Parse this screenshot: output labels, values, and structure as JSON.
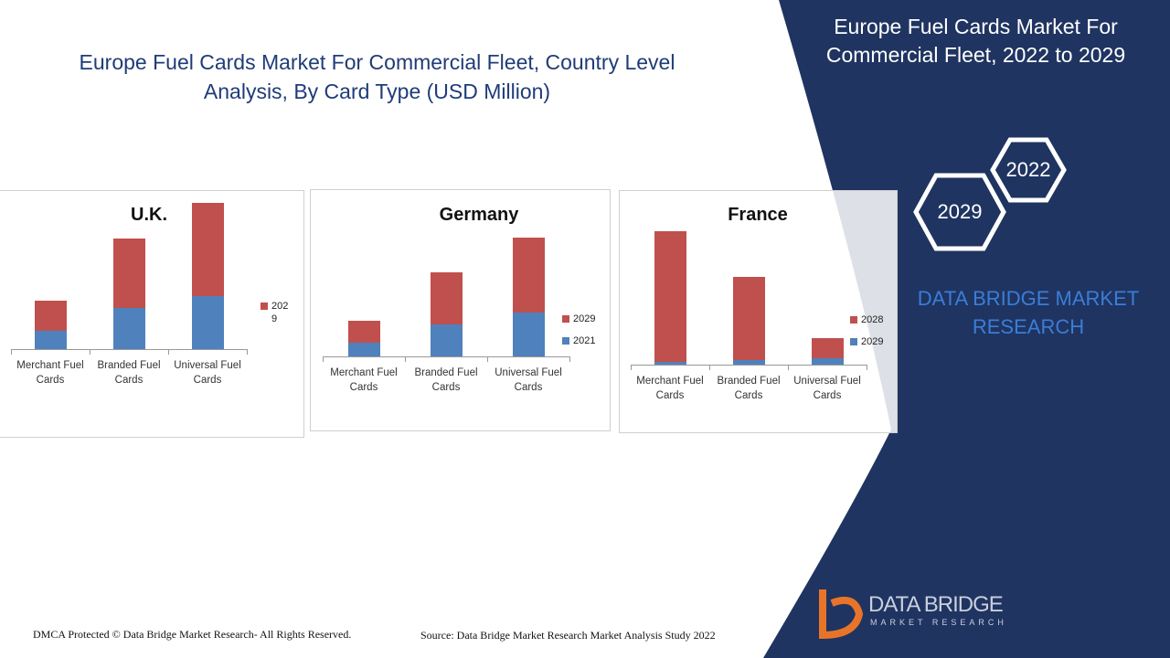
{
  "header": {
    "title": "Europe Fuel Cards Market For Commercial Fleet, Country Level Analysis, By Card Type (USD Million)"
  },
  "side": {
    "title": "Europe Fuel Cards Market For Commercial Fleet, 2022 to 2029",
    "hex_1": "2022",
    "hex_2": "2029",
    "brand": "DATA BRIDGE MARKET RESEARCH",
    "logo_top": "DATA BRIDGE",
    "logo_bottom": "MARKET RESEARCH"
  },
  "footer": {
    "left": "DMCA Protected © Data Bridge Market Research- All Rights Reserved.",
    "right": "Source: Data Bridge Market Research Market Analysis Study 2022"
  },
  "chart_data": [
    {
      "type": "bar",
      "stacked": true,
      "title": "U.K.",
      "categories": [
        "Merchant Fuel Cards",
        "Branded Fuel Cards",
        "Universal Fuel Cards"
      ],
      "series": [
        {
          "color": "#4f81bd",
          "values": [
            20,
            45,
            58
          ]
        },
        {
          "name": "2029",
          "color": "#c0504d",
          "values": [
            33,
            76,
            102
          ]
        }
      ]
    },
    {
      "type": "bar",
      "stacked": true,
      "title": "Germany",
      "categories": [
        "Merchant Fuel Cards",
        "Branded Fuel Cards",
        "Universal Fuel Cards"
      ],
      "series": [
        {
          "name": "2021",
          "color": "#4f81bd",
          "values": [
            15,
            35,
            48
          ]
        },
        {
          "name": "2029",
          "color": "#c0504d",
          "values": [
            24,
            57,
            82
          ]
        }
      ]
    },
    {
      "type": "bar",
      "stacked": true,
      "title": "France",
      "categories": [
        "Merchant Fuel Cards",
        "Branded Fuel Cards",
        "Universal Fuel Cards"
      ],
      "series": [
        {
          "name": "2029",
          "color": "#4f81bd",
          "values": [
            3,
            5,
            7
          ]
        },
        {
          "name": "2028",
          "color": "#c0504d",
          "values": [
            143,
            91,
            22
          ]
        }
      ]
    }
  ]
}
